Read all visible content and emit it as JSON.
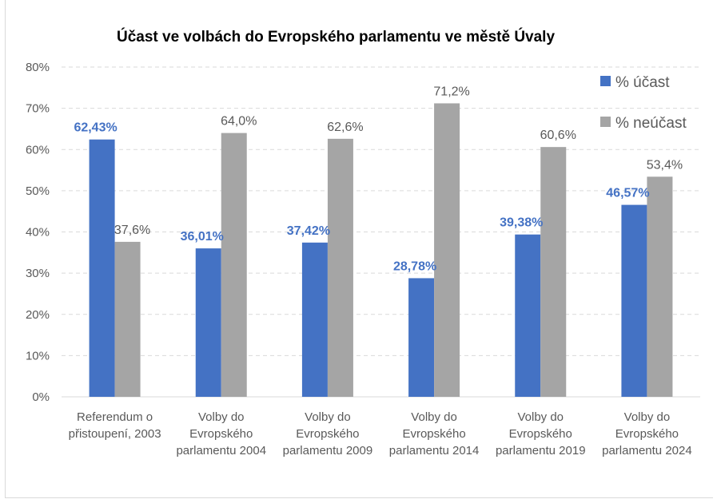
{
  "chart_data": {
    "type": "bar",
    "title": "Účast ve volbách do Evropského parlamentu ve městě Úvaly",
    "xlabel": "",
    "ylabel": "",
    "ylim": [
      0,
      80
    ],
    "yticks": [
      "0%",
      "10%",
      "20%",
      "30%",
      "40%",
      "50%",
      "60%",
      "70%",
      "80%"
    ],
    "ytick_values": [
      0,
      10,
      20,
      30,
      40,
      50,
      60,
      70,
      80
    ],
    "grid": true,
    "legend_position": "top-right",
    "categories": [
      [
        "Referendum o",
        "přistoupení, 2003"
      ],
      [
        "Volby do",
        "Evropského",
        "parlamentu 2004"
      ],
      [
        "Volby do",
        "Evropského",
        "parlamentu 2009"
      ],
      [
        "Volby do",
        "Evropského",
        "parlamentu 2014"
      ],
      [
        "Volby do",
        "Evropského",
        "parlamentu 2019"
      ],
      [
        "Volby do",
        "Evropského",
        "parlamentu 2024"
      ]
    ],
    "series": [
      {
        "name": "% účast",
        "color": "#4472c4",
        "values": [
          62.43,
          36.01,
          37.42,
          28.78,
          39.38,
          46.57
        ],
        "labels": [
          "62,43%",
          "36,01%",
          "37,42%",
          "28,78%",
          "39,38%",
          "46,57%"
        ]
      },
      {
        "name": "% neúčast",
        "color": "#a5a5a5",
        "values": [
          37.6,
          64.0,
          62.6,
          71.2,
          60.6,
          53.4
        ],
        "labels": [
          "37,6%",
          "64,0%",
          "62,6%",
          "71,2%",
          "60,6%",
          "53,4%"
        ]
      }
    ]
  }
}
